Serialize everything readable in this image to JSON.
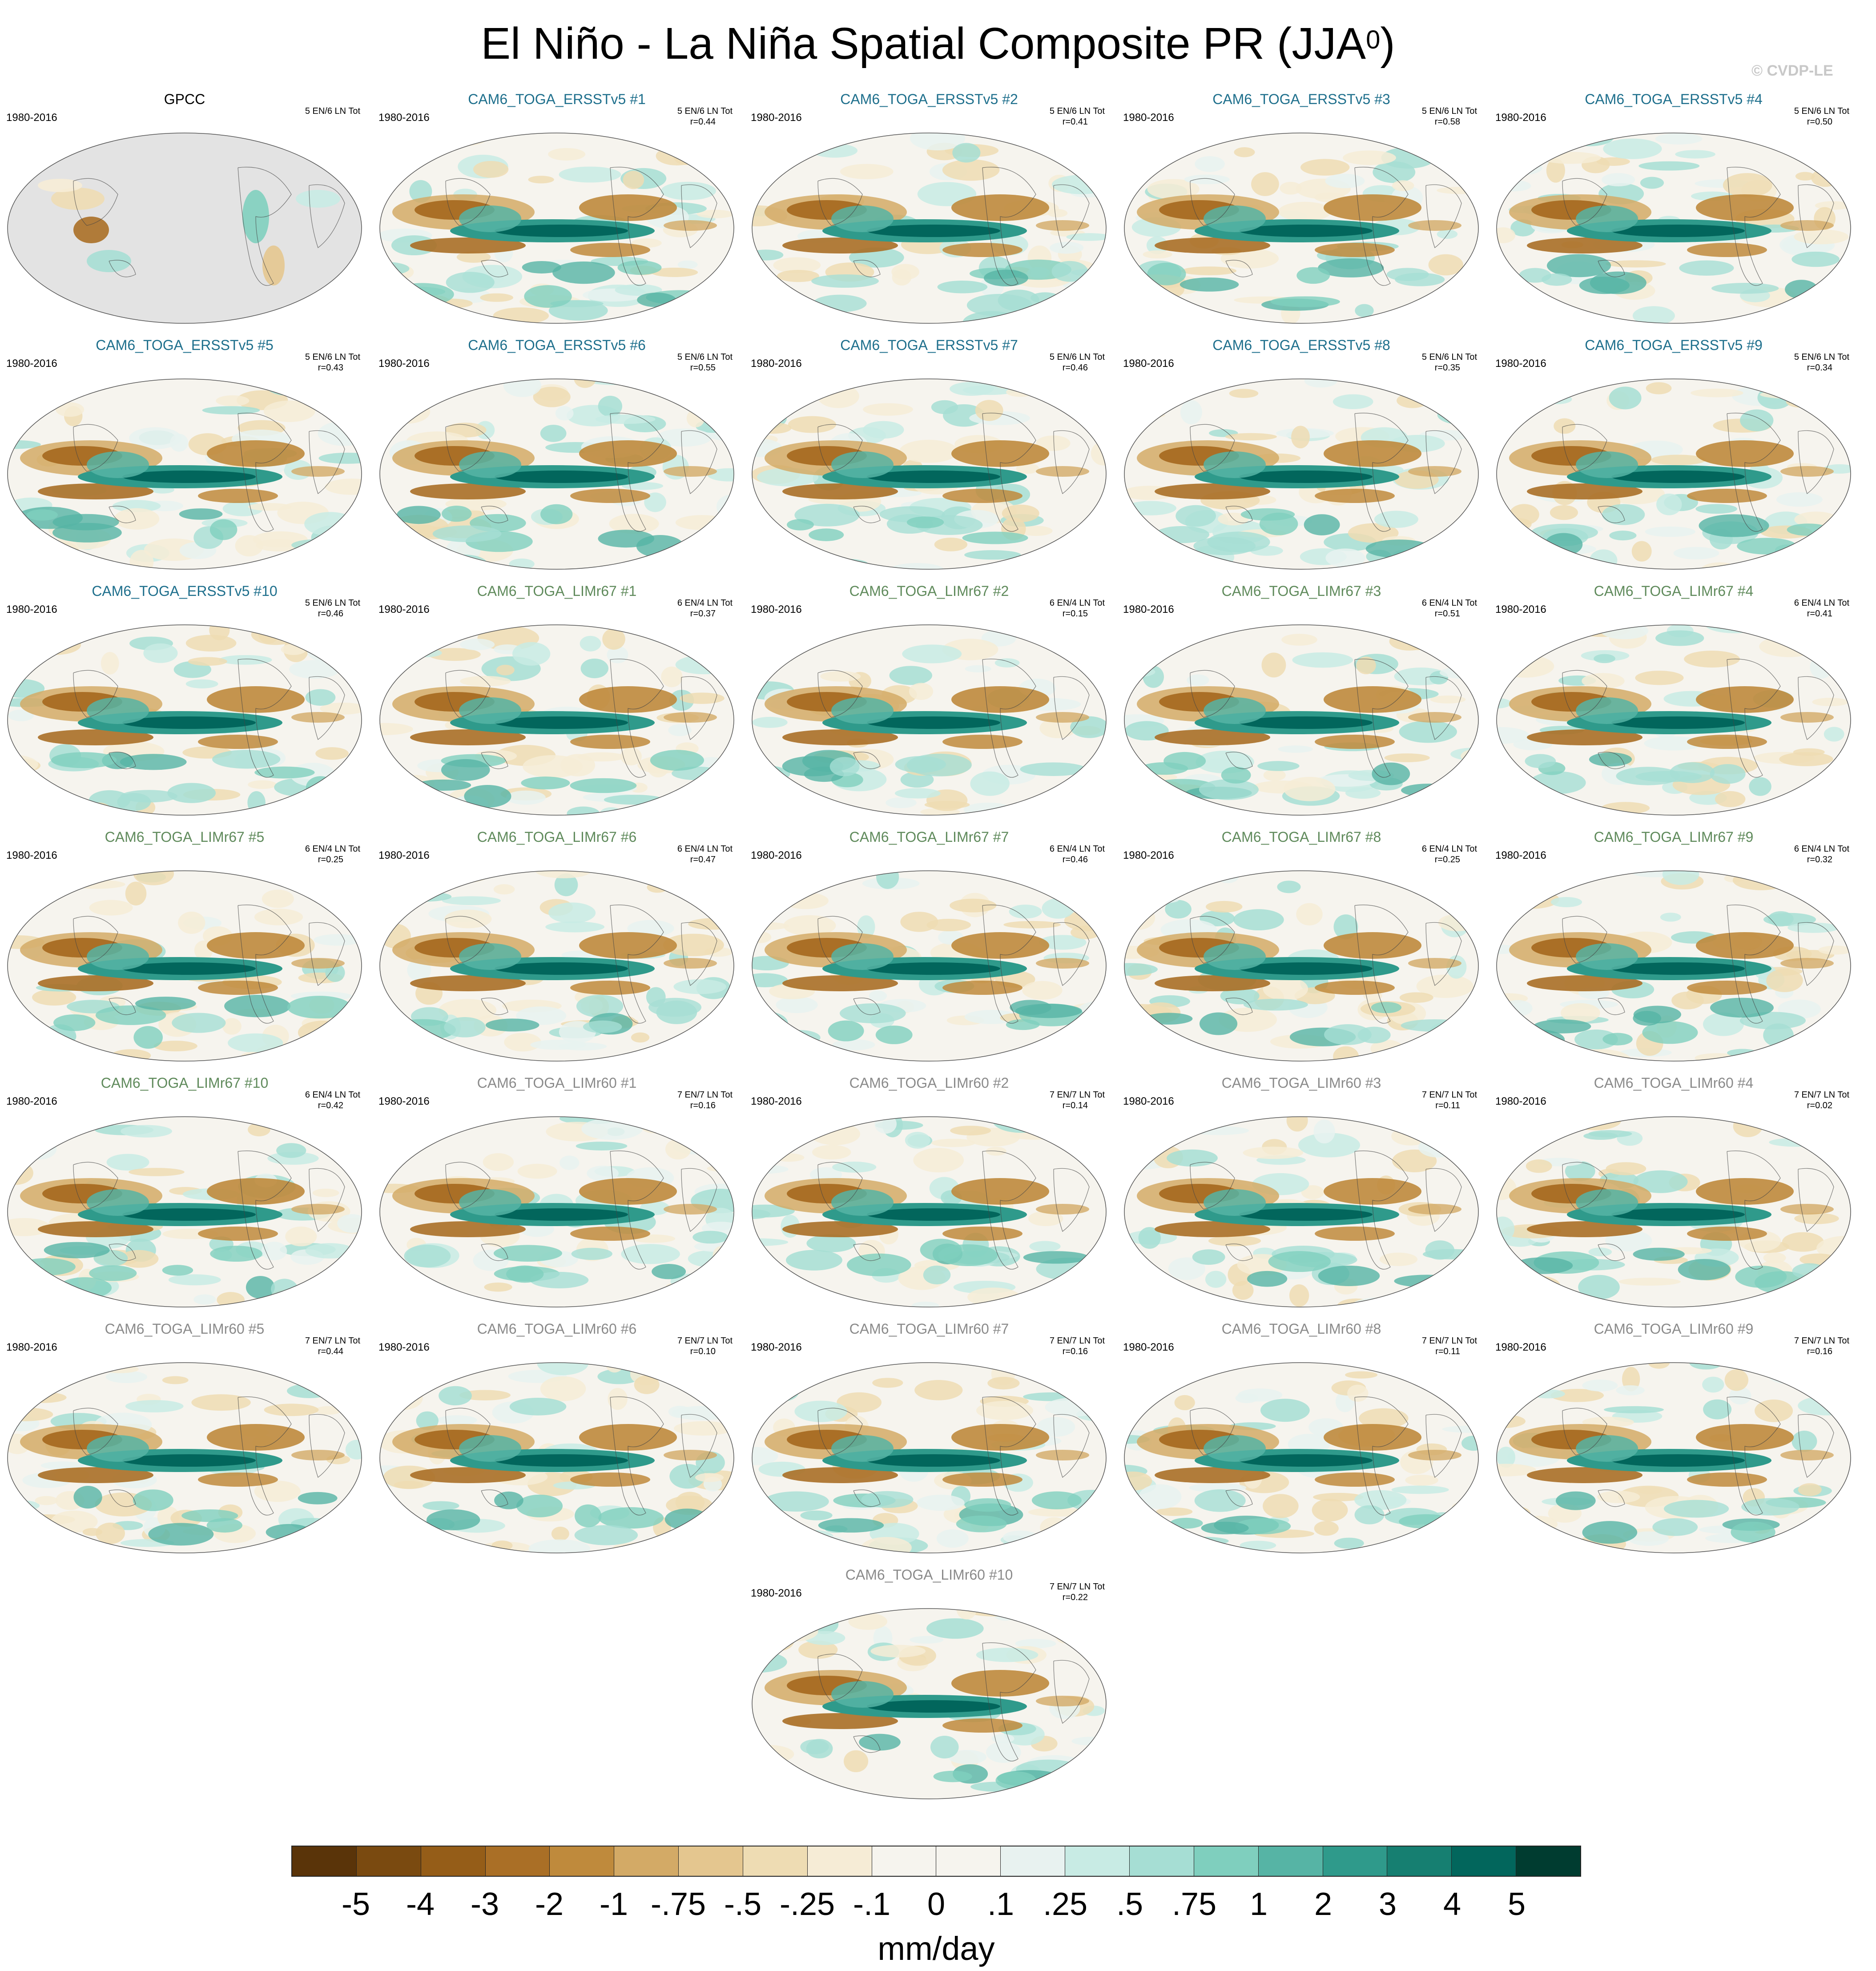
{
  "title_main": "El Niño - La Niña Spatial Composite PR (JJA",
  "title_sup": "0",
  "title_close": ")",
  "watermark": "© CVDP-LE",
  "colors": {
    "ersst_title": "#1e6f8c",
    "limr67_title": "#5f8a5b",
    "limr60_title": "#8a8a8a",
    "obs_title": "#000000",
    "land_gray": "#e3e3e3"
  },
  "panels": [
    {
      "name": "GPCC",
      "group": "obs",
      "period": "1980-2016",
      "count": "5 EN/6 LN Tot",
      "r": ""
    },
    {
      "name": "CAM6_TOGA_ERSSTv5 #1",
      "group": "ersst",
      "period": "1980-2016",
      "count": "5 EN/6 LN Tot",
      "r": "r=0.44"
    },
    {
      "name": "CAM6_TOGA_ERSSTv5 #2",
      "group": "ersst",
      "period": "1980-2016",
      "count": "5 EN/6 LN Tot",
      "r": "r=0.41"
    },
    {
      "name": "CAM6_TOGA_ERSSTv5 #3",
      "group": "ersst",
      "period": "1980-2016",
      "count": "5 EN/6 LN Tot",
      "r": "r=0.58"
    },
    {
      "name": "CAM6_TOGA_ERSSTv5 #4",
      "group": "ersst",
      "period": "1980-2016",
      "count": "5 EN/6 LN Tot",
      "r": "r=0.50"
    },
    {
      "name": "CAM6_TOGA_ERSSTv5 #5",
      "group": "ersst",
      "period": "1980-2016",
      "count": "5 EN/6 LN Tot",
      "r": "r=0.43"
    },
    {
      "name": "CAM6_TOGA_ERSSTv5 #6",
      "group": "ersst",
      "period": "1980-2016",
      "count": "5 EN/6 LN Tot",
      "r": "r=0.55"
    },
    {
      "name": "CAM6_TOGA_ERSSTv5 #7",
      "group": "ersst",
      "period": "1980-2016",
      "count": "5 EN/6 LN Tot",
      "r": "r=0.46"
    },
    {
      "name": "CAM6_TOGA_ERSSTv5 #8",
      "group": "ersst",
      "period": "1980-2016",
      "count": "5 EN/6 LN Tot",
      "r": "r=0.35"
    },
    {
      "name": "CAM6_TOGA_ERSSTv5 #9",
      "group": "ersst",
      "period": "1980-2016",
      "count": "5 EN/6 LN Tot",
      "r": "r=0.34"
    },
    {
      "name": "CAM6_TOGA_ERSSTv5 #10",
      "group": "ersst",
      "period": "1980-2016",
      "count": "5 EN/6 LN Tot",
      "r": "r=0.46"
    },
    {
      "name": "CAM6_TOGA_LIMr67 #1",
      "group": "limr67",
      "period": "1980-2016",
      "count": "6 EN/4 LN Tot",
      "r": "r=0.37"
    },
    {
      "name": "CAM6_TOGA_LIMr67 #2",
      "group": "limr67",
      "period": "1980-2016",
      "count": "6 EN/4 LN Tot",
      "r": "r=0.15"
    },
    {
      "name": "CAM6_TOGA_LIMr67 #3",
      "group": "limr67",
      "period": "1980-2016",
      "count": "6 EN/4 LN Tot",
      "r": "r=0.51"
    },
    {
      "name": "CAM6_TOGA_LIMr67 #4",
      "group": "limr67",
      "period": "1980-2016",
      "count": "6 EN/4 LN Tot",
      "r": "r=0.41"
    },
    {
      "name": "CAM6_TOGA_LIMr67 #5",
      "group": "limr67",
      "period": "1980-2016",
      "count": "6 EN/4 LN Tot",
      "r": "r=0.25"
    },
    {
      "name": "CAM6_TOGA_LIMr67 #6",
      "group": "limr67",
      "period": "1980-2016",
      "count": "6 EN/4 LN Tot",
      "r": "r=0.47"
    },
    {
      "name": "CAM6_TOGA_LIMr67 #7",
      "group": "limr67",
      "period": "1980-2016",
      "count": "6 EN/4 LN Tot",
      "r": "r=0.46"
    },
    {
      "name": "CAM6_TOGA_LIMr67 #8",
      "group": "limr67",
      "period": "1980-2016",
      "count": "6 EN/4 LN Tot",
      "r": "r=0.25"
    },
    {
      "name": "CAM6_TOGA_LIMr67 #9",
      "group": "limr67",
      "period": "1980-2016",
      "count": "6 EN/4 LN Tot",
      "r": "r=0.32"
    },
    {
      "name": "CAM6_TOGA_LIMr67 #10",
      "group": "limr67",
      "period": "1980-2016",
      "count": "6 EN/4 LN Tot",
      "r": "r=0.42"
    },
    {
      "name": "CAM6_TOGA_LIMr60 #1",
      "group": "limr60",
      "period": "1980-2016",
      "count": "7 EN/7 LN Tot",
      "r": "r=0.16"
    },
    {
      "name": "CAM6_TOGA_LIMr60 #2",
      "group": "limr60",
      "period": "1980-2016",
      "count": "7 EN/7 LN Tot",
      "r": "r=0.14"
    },
    {
      "name": "CAM6_TOGA_LIMr60 #3",
      "group": "limr60",
      "period": "1980-2016",
      "count": "7 EN/7 LN Tot",
      "r": "r=0.11"
    },
    {
      "name": "CAM6_TOGA_LIMr60 #4",
      "group": "limr60",
      "period": "1980-2016",
      "count": "7 EN/7 LN Tot",
      "r": "r=0.02"
    },
    {
      "name": "CAM6_TOGA_LIMr60 #5",
      "group": "limr60",
      "period": "1980-2016",
      "count": "7 EN/7 LN Tot",
      "r": "r=0.44"
    },
    {
      "name": "CAM6_TOGA_LIMr60 #6",
      "group": "limr60",
      "period": "1980-2016",
      "count": "7 EN/7 LN Tot",
      "r": "r=0.10"
    },
    {
      "name": "CAM6_TOGA_LIMr60 #7",
      "group": "limr60",
      "period": "1980-2016",
      "count": "7 EN/7 LN Tot",
      "r": "r=0.16"
    },
    {
      "name": "CAM6_TOGA_LIMr60 #8",
      "group": "limr60",
      "period": "1980-2016",
      "count": "7 EN/7 LN Tot",
      "r": "r=0.11"
    },
    {
      "name": "CAM6_TOGA_LIMr60 #9",
      "group": "limr60",
      "period": "1980-2016",
      "count": "7 EN/7 LN Tot",
      "r": "r=0.16"
    },
    {
      "name": "CAM6_TOGA_LIMr60 #10",
      "group": "limr60",
      "period": "1980-2016",
      "count": "7 EN/7 LN Tot",
      "r": "r=0.22"
    }
  ],
  "colorbar": {
    "units": "mm/day",
    "labels": [
      "-5",
      "-4",
      "-3",
      "-2",
      "-1",
      "-.75",
      "-.5",
      "-.25",
      "-.1",
      "0",
      ".1",
      ".25",
      ".5",
      ".75",
      "1",
      "2",
      "3",
      "4",
      "5"
    ],
    "colors": [
      "#5a3409",
      "#7a4a10",
      "#955d18",
      "#aa6f26",
      "#bf8a3c",
      "#d3aa66",
      "#e4c68f",
      "#eedcb3",
      "#f6ecd6",
      "#f6f4ee",
      "#e8f2f0",
      "#c8ebe4",
      "#a6ded4",
      "#7fcfbe",
      "#56b4a5",
      "#2f9a8b",
      "#167f71",
      "#02665c",
      "#003c30"
    ]
  }
}
